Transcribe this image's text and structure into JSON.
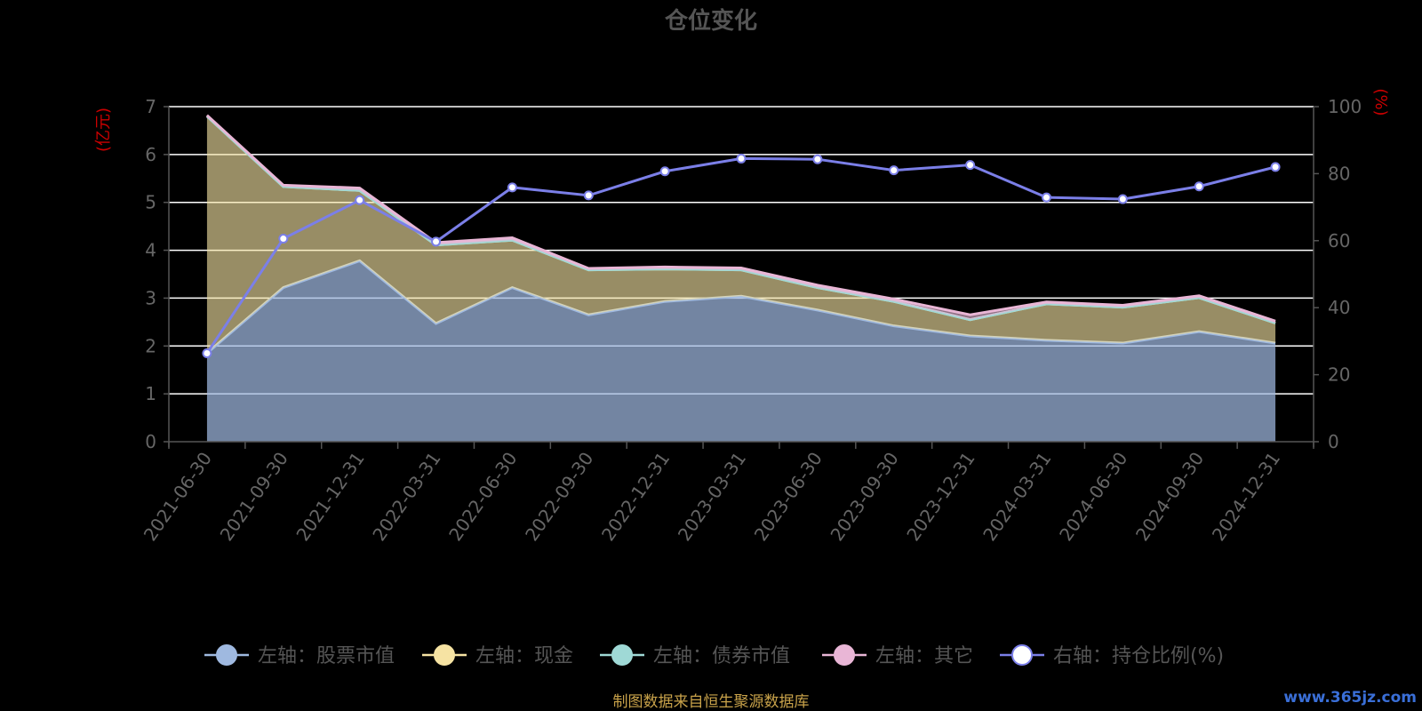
{
  "chart_data": {
    "type": "area",
    "title": "仓位变化",
    "left_unit": "(亿元)",
    "right_unit": "(%)",
    "categories": [
      "2021-06-30",
      "2021-09-30",
      "2021-12-31",
      "2022-03-31",
      "2022-06-30",
      "2022-09-30",
      "2022-12-31",
      "2023-03-31",
      "2023-06-30",
      "2023-09-30",
      "2023-12-31",
      "2024-03-31",
      "2024-06-30",
      "2024-09-30",
      "2024-12-31"
    ],
    "left_axis": {
      "ylim": [
        0,
        7
      ],
      "ticks": [
        0,
        1,
        2,
        3,
        4,
        5,
        6,
        7
      ]
    },
    "right_axis": {
      "ylim": [
        0,
        100
      ],
      "ticks": [
        0,
        20,
        40,
        60,
        80,
        100
      ]
    },
    "series": [
      {
        "name": "左轴：股票市值",
        "axis": "left",
        "type": "area",
        "color": "#9fb9e0",
        "values": [
          1.85,
          3.22,
          3.78,
          2.47,
          3.22,
          2.65,
          2.93,
          3.04,
          2.75,
          2.42,
          2.21,
          2.12,
          2.06,
          2.3,
          2.06
        ]
      },
      {
        "name": "左轴：现金",
        "axis": "left",
        "type": "area",
        "color": "#f6e3a3",
        "values": [
          4.95,
          2.11,
          1.47,
          1.64,
          0.99,
          0.94,
          0.68,
          0.55,
          0.47,
          0.51,
          0.34,
          0.76,
          0.75,
          0.71,
          0.42
        ]
      },
      {
        "name": "左轴：债券市值",
        "axis": "left",
        "type": "area",
        "color": "#9fd9d6",
        "values": [
          0,
          0,
          0,
          0,
          0,
          0,
          0,
          0,
          0,
          0,
          0,
          0,
          0,
          0,
          0
        ]
      },
      {
        "name": "左轴：其它",
        "axis": "left",
        "type": "area",
        "color": "#e9b6d6",
        "values": [
          0.02,
          0.03,
          0.05,
          0.05,
          0.05,
          0.03,
          0.04,
          0.04,
          0.05,
          0.05,
          0.1,
          0.04,
          0.04,
          0.04,
          0.04
        ]
      },
      {
        "name": "右轴：持仓比例(%)",
        "axis": "right",
        "type": "line",
        "color": "#7b7fe8",
        "values": [
          26.4,
          60.6,
          72.1,
          59.7,
          75.9,
          73.5,
          80.7,
          84.5,
          84.3,
          81.0,
          82.6,
          72.9,
          72.4,
          76.2,
          82.0
        ]
      }
    ],
    "grid": true,
    "legend_position": "bottom"
  },
  "footer": "制图数据来自恒生聚源数据库",
  "watermark": "www.365jz.com",
  "colors": {
    "background": "#000000",
    "grid": "#ffffff",
    "axis": "#555555",
    "unit": "#cc0000"
  }
}
